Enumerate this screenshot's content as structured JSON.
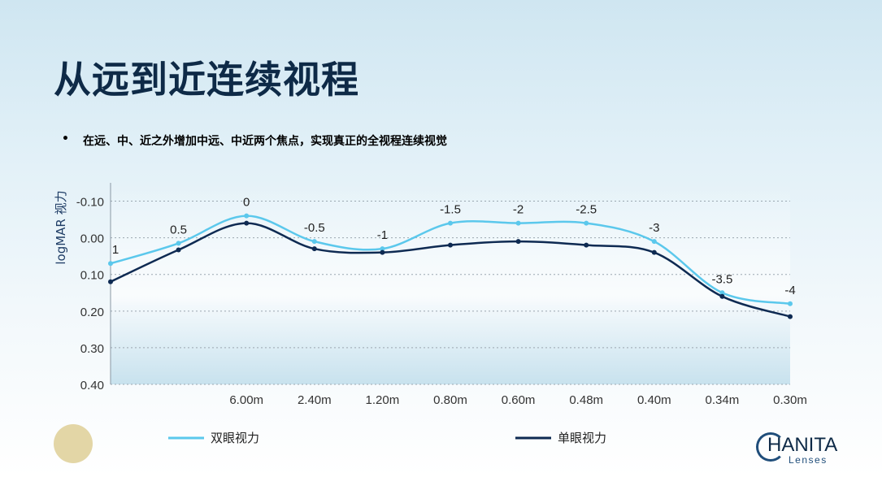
{
  "title": "从远到近连续视程",
  "bullet": {
    "marker": "•",
    "text": "在远、中、近之外增加中远、中近两个焦点，实现真正的全视程连续视觉"
  },
  "logo": {
    "word": "HANITA",
    "sub": "Lenses"
  },
  "chart_data": {
    "type": "line",
    "ylabel": "logMAR 视力",
    "y_tick_labels": [
      "-0.10",
      "0.00",
      "0.10",
      "0.20",
      "0.30",
      "0.40"
    ],
    "ylim": [
      -0.1,
      0.4
    ],
    "x_tick_labels": [
      "6.00m",
      "2.40m",
      "1.20m",
      "0.80m",
      "0.60m",
      "0.48m",
      "0.40m",
      "0.34m",
      "0.30m"
    ],
    "x": [
      "1",
      "0.5",
      "0",
      "-0.5",
      "-1",
      "-1.5",
      "-2",
      "-2.5",
      "-3",
      "-3.5",
      "-4"
    ],
    "grid": true,
    "legend": "bottom",
    "series": [
      {
        "name": "双眼视力",
        "color": "#5bc8ec",
        "values": [
          0.07,
          0.015,
          -0.06,
          0.01,
          0.03,
          -0.04,
          -0.04,
          -0.04,
          0.01,
          0.15,
          0.18
        ]
      },
      {
        "name": "单眼视力",
        "color": "#0e2a52",
        "values": [
          0.12,
          0.033,
          -0.04,
          0.03,
          0.04,
          0.02,
          0.01,
          0.02,
          0.04,
          0.16,
          0.215
        ]
      }
    ]
  }
}
